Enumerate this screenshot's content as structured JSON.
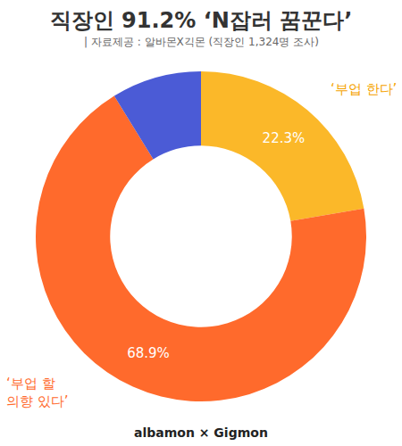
{
  "chart_data": {
    "type": "pie",
    "hole": true,
    "title": "직장인 91.2% ‘N잡러 꿈꾼다’",
    "subtitle": "| 자료제공 : 알바몬X긱몬 (직장인 1,324명 조사)",
    "categories": [
      "‘부업 한다’",
      "‘부업 할\n의향 있다’",
      null
    ],
    "values": [
      22.3,
      68.9,
      8.8
    ],
    "value_labels": [
      "22.3%",
      "68.9%",
      null
    ],
    "colors": [
      "#FBB829",
      "#FF6A2C",
      "#4B5BD6"
    ],
    "data_labels": true,
    "footer": "albamon × Gigmon"
  }
}
